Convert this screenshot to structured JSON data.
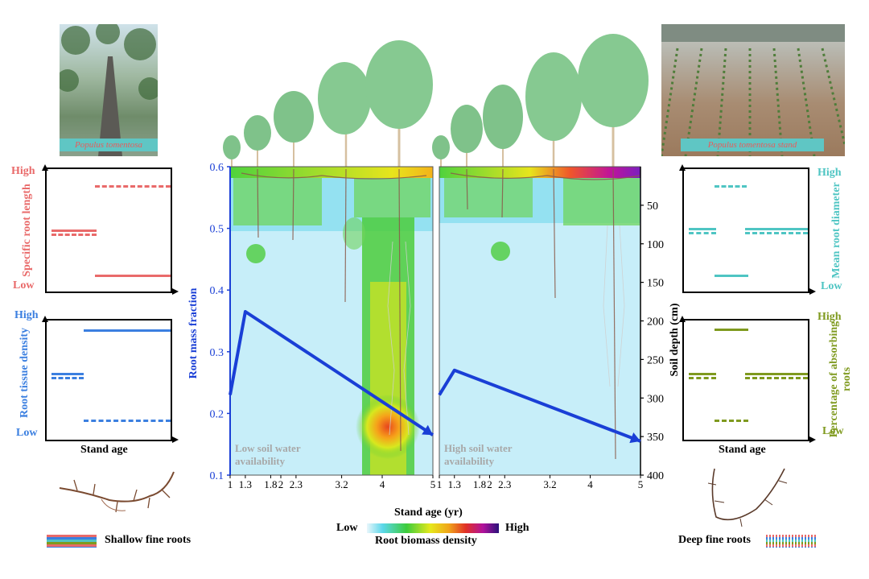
{
  "photos": {
    "left_caption": "Populus tomentosa",
    "right_caption": "Populus tomentosa stand"
  },
  "left_panels": {
    "top": {
      "ylabel": "Specific root length",
      "high": "High",
      "low": "Low",
      "color": "#e96a6a"
    },
    "bottom": {
      "ylabel": "Root tissue density",
      "high": "High",
      "low": "Low",
      "color": "#3b7fe0"
    },
    "xlabel": "Stand age"
  },
  "right_panels": {
    "top": {
      "ylabel": "Mean root diameter",
      "high": "High",
      "low": "Low",
      "color": "#4fc5c3"
    },
    "bottom": {
      "ylabel": "Percentage of absorbing roots",
      "high": "High",
      "low": "Low",
      "color": "#7f9a1f"
    },
    "xlabel": "Stand age"
  },
  "chart_data": {
    "type": "line",
    "left_axis": {
      "label": "Root mass fraction",
      "ticks": [
        "0.6",
        "0.5",
        "0.4",
        "0.3",
        "0.2",
        "0.1"
      ],
      "ylim": [
        0.1,
        0.6
      ]
    },
    "right_axis": {
      "label": "Soil depth (cm)",
      "ticks": [
        "50",
        "100",
        "150",
        "200",
        "250",
        "300",
        "350",
        "400"
      ]
    },
    "x_axis": {
      "label": "Stand age (yr)",
      "ticks": [
        "1",
        "1.3",
        "1.8",
        "2",
        "2.3",
        "3.2",
        "4",
        "5"
      ]
    },
    "panels": [
      {
        "condition": "Low soil water availability",
        "series": [
          {
            "x": [
              1,
              1.3,
              5
            ],
            "y": [
              0.23,
              0.365,
              0.165
            ]
          }
        ]
      },
      {
        "condition": "High soil water availability",
        "series": [
          {
            "x": [
              1,
              1.3,
              5
            ],
            "y": [
              0.23,
              0.27,
              0.155
            ]
          }
        ]
      }
    ],
    "colorbar": {
      "low": "Low",
      "high": "High",
      "label": "Root biomass density"
    }
  },
  "legend": {
    "shallow": "Shallow fine roots",
    "deep": "Deep fine roots"
  }
}
